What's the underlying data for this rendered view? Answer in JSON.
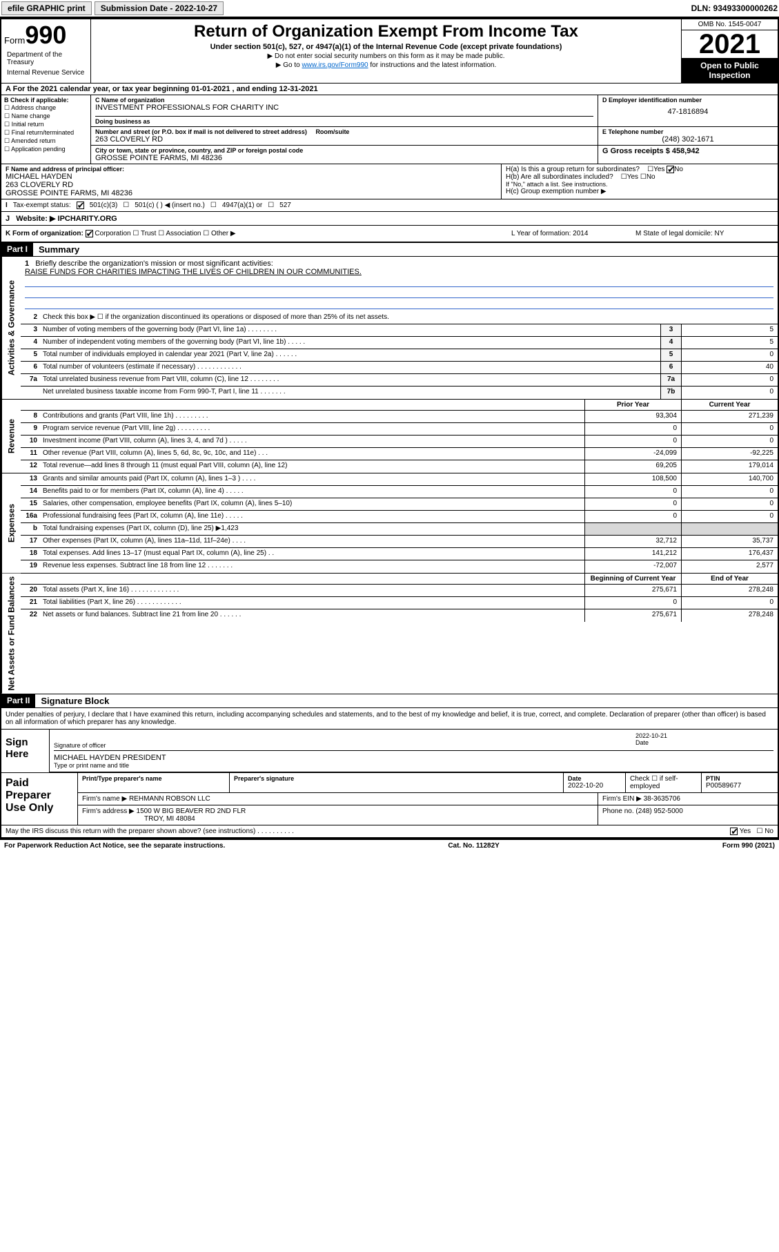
{
  "topbar": {
    "efile": "efile GRAPHIC print",
    "submission_label": "Submission Date - 2022-10-27",
    "dln": "DLN: 93493300000262"
  },
  "header": {
    "form_prefix": "Form",
    "form_num": "990",
    "title": "Return of Organization Exempt From Income Tax",
    "sub": "Under section 501(c), 527, or 4947(a)(1) of the Internal Revenue Code (except private foundations)",
    "note1": "▶ Do not enter social security numbers on this form as it may be made public.",
    "note2_pre": "▶ Go to ",
    "note2_link": "www.irs.gov/Form990",
    "note2_post": " for instructions and the latest information.",
    "omb": "OMB No. 1545-0047",
    "year": "2021",
    "inspect": "Open to Public Inspection",
    "dept": "Department of the Treasury",
    "irs": "Internal Revenue Service"
  },
  "section_a": {
    "text": "For the 2021 calendar year, or tax year beginning 01-01-2021   , and ending 12-31-2021"
  },
  "section_b": {
    "title": "B Check if applicable:",
    "opts": [
      "Address change",
      "Name change",
      "Initial return",
      "Final return/terminated",
      "Amended return",
      "Application pending"
    ]
  },
  "section_c": {
    "name_label": "C Name of organization",
    "name": "INVESTMENT PROFESSIONALS FOR CHARITY INC",
    "dba_label": "Doing business as",
    "addr_label": "Number and street (or P.O. box if mail is not delivered to street address)",
    "room_label": "Room/suite",
    "addr": "263 CLOVERLY RD",
    "city_label": "City or town, state or province, country, and ZIP or foreign postal code",
    "city": "GROSSE POINTE FARMS, MI  48236"
  },
  "section_d": {
    "label": "D Employer identification number",
    "ein": "47-1816894"
  },
  "section_e": {
    "label": "E Telephone number",
    "phone": "(248) 302-1671"
  },
  "section_g": {
    "label": "G Gross receipts $",
    "val": "458,942"
  },
  "section_f": {
    "label": "F Name and address of principal officer:",
    "name": "MICHAEL HAYDEN",
    "addr1": "263 CLOVERLY RD",
    "addr2": "GROSSE POINTE FARMS, MI  48236"
  },
  "section_h": {
    "ha": "H(a)  Is this a group return for subordinates?",
    "hb": "H(b)  Are all subordinates included?",
    "hb_note": "If \"No,\" attach a list. See instructions.",
    "hc": "H(c)  Group exemption number ▶",
    "yes": "Yes",
    "no": "No"
  },
  "section_i": {
    "label": "Tax-exempt status:",
    "o1": "501(c)(3)",
    "o2": "501(c) (  ) ◀ (insert no.)",
    "o3": "4947(a)(1) or",
    "o4": "527"
  },
  "section_j": {
    "label": "Website: ▶",
    "val": "IPCHARITY.ORG"
  },
  "section_k": {
    "label": "K Form of organization:",
    "o1": "Corporation",
    "o2": "Trust",
    "o3": "Association",
    "o4": "Other ▶",
    "l": "L Year of formation: 2014",
    "m": "M State of legal domicile: NY"
  },
  "part1": {
    "hdr": "Part I",
    "title": "Summary",
    "line1_label": "Briefly describe the organization's mission or most significant activities:",
    "line1_val": "RAISE FUNDS FOR CHARITIES IMPACTING THE LIVES OF CHILDREN IN OUR COMMUNITIES.",
    "line2": "Check this box ▶ ☐  if the organization discontinued its operations or disposed of more than 25% of its net assets.",
    "side_gov": "Activities & Governance",
    "side_rev": "Revenue",
    "side_exp": "Expenses",
    "side_net": "Net Assets or Fund Balances",
    "col_prior": "Prior Year",
    "col_curr": "Current Year",
    "col_beg": "Beginning of Current Year",
    "col_end": "End of Year",
    "lines_gov": [
      {
        "n": "3",
        "t": "Number of voting members of the governing body (Part VI, line 1a)  .   .   .   .   .   .   .   .",
        "box": "3",
        "v": "5"
      },
      {
        "n": "4",
        "t": "Number of independent voting members of the governing body (Part VI, line 1b)  .   .   .   .   .",
        "box": "4",
        "v": "5"
      },
      {
        "n": "5",
        "t": "Total number of individuals employed in calendar year 2021 (Part V, line 2a)  .   .   .   .   .   .",
        "box": "5",
        "v": "0"
      },
      {
        "n": "6",
        "t": "Total number of volunteers (estimate if necessary)  .   .   .   .   .   .   .   .   .   .   .   .",
        "box": "6",
        "v": "40"
      },
      {
        "n": "7a",
        "t": "Total unrelated business revenue from Part VIII, column (C), line 12  .   .   .   .   .   .   .   .",
        "box": "7a",
        "v": "0"
      },
      {
        "n": "",
        "t": "Net unrelated business taxable income from Form 990-T, Part I, line 11  .   .   .   .   .   .   .",
        "box": "7b",
        "v": "0"
      }
    ],
    "lines_rev": [
      {
        "n": "8",
        "t": "Contributions and grants (Part VIII, line 1h)  .   .   .   .   .   .   .   .   .",
        "p": "93,304",
        "c": "271,239"
      },
      {
        "n": "9",
        "t": "Program service revenue (Part VIII, line 2g)  .   .   .   .   .   .   .   .   .",
        "p": "0",
        "c": "0"
      },
      {
        "n": "10",
        "t": "Investment income (Part VIII, column (A), lines 3, 4, and 7d )  .   .   .   .   .",
        "p": "0",
        "c": "0"
      },
      {
        "n": "11",
        "t": "Other revenue (Part VIII, column (A), lines 5, 6d, 8c, 9c, 10c, and 11e)  .   .   .",
        "p": "-24,099",
        "c": "-92,225"
      },
      {
        "n": "12",
        "t": "Total revenue—add lines 8 through 11 (must equal Part VIII, column (A), line 12)",
        "p": "69,205",
        "c": "179,014"
      }
    ],
    "lines_exp": [
      {
        "n": "13",
        "t": "Grants and similar amounts paid (Part IX, column (A), lines 1–3 )  .   .   .   .",
        "p": "108,500",
        "c": "140,700"
      },
      {
        "n": "14",
        "t": "Benefits paid to or for members (Part IX, column (A), line 4)  .   .   .   .   .",
        "p": "0",
        "c": "0"
      },
      {
        "n": "15",
        "t": "Salaries, other compensation, employee benefits (Part IX, column (A), lines 5–10)",
        "p": "0",
        "c": "0"
      },
      {
        "n": "16a",
        "t": "Professional fundraising fees (Part IX, column (A), line 11e)  .   .   .   .   .",
        "p": "0",
        "c": "0"
      },
      {
        "n": "b",
        "t": "Total fundraising expenses (Part IX, column (D), line 25) ▶1,423",
        "p": "",
        "c": "",
        "shade": true
      },
      {
        "n": "17",
        "t": "Other expenses (Part IX, column (A), lines 11a–11d, 11f–24e)  .   .   .   .",
        "p": "32,712",
        "c": "35,737"
      },
      {
        "n": "18",
        "t": "Total expenses. Add lines 13–17 (must equal Part IX, column (A), line 25)  .   .",
        "p": "141,212",
        "c": "176,437"
      },
      {
        "n": "19",
        "t": "Revenue less expenses. Subtract line 18 from line 12  .   .   .   .   .   .   .",
        "p": "-72,007",
        "c": "2,577"
      }
    ],
    "lines_net": [
      {
        "n": "20",
        "t": "Total assets (Part X, line 16)  .   .   .   .   .   .   .   .   .   .   .   .   .",
        "p": "275,671",
        "c": "278,248"
      },
      {
        "n": "21",
        "t": "Total liabilities (Part X, line 26)  .   .   .   .   .   .   .   .   .   .   .   .",
        "p": "0",
        "c": "0"
      },
      {
        "n": "22",
        "t": "Net assets or fund balances. Subtract line 21 from line 20  .   .   .   .   .   .",
        "p": "275,671",
        "c": "278,248"
      }
    ]
  },
  "part2": {
    "hdr": "Part II",
    "title": "Signature Block",
    "decl": "Under penalties of perjury, I declare that I have examined this return, including accompanying schedules and statements, and to the best of my knowledge and belief, it is true, correct, and complete. Declaration of preparer (other than officer) is based on all information of which preparer has any knowledge.",
    "sign_here": "Sign Here",
    "sig_officer": "Signature of officer",
    "sig_date": "Date",
    "sig_date_val": "2022-10-21",
    "sig_name": "MICHAEL HAYDEN  PRESIDENT",
    "sig_name_label": "Type or print name and title",
    "paid": "Paid Preparer Use Only",
    "prep_name_label": "Print/Type preparer's name",
    "prep_sig_label": "Preparer's signature",
    "prep_date_label": "Date",
    "prep_date": "2022-10-20",
    "prep_check": "Check ☐ if self-employed",
    "ptin_label": "PTIN",
    "ptin": "P00589677",
    "firm_name_label": "Firm's name    ▶",
    "firm_name": "REHMANN ROBSON LLC",
    "firm_ein_label": "Firm's EIN ▶",
    "firm_ein": "38-3635706",
    "firm_addr_label": "Firm's address ▶",
    "firm_addr": "1500 W BIG BEAVER RD 2ND FLR",
    "firm_city": "TROY, MI  48084",
    "firm_phone_label": "Phone no.",
    "firm_phone": "(248) 952-5000",
    "discuss": "May the IRS discuss this return with the preparer shown above? (see instructions)  .   .   .   .   .   .   .   .   .   .",
    "yes": "Yes",
    "no": "No"
  },
  "footer": {
    "l": "For Paperwork Reduction Act Notice, see the separate instructions.",
    "m": "Cat. No. 11282Y",
    "r": "Form 990 (2021)"
  }
}
